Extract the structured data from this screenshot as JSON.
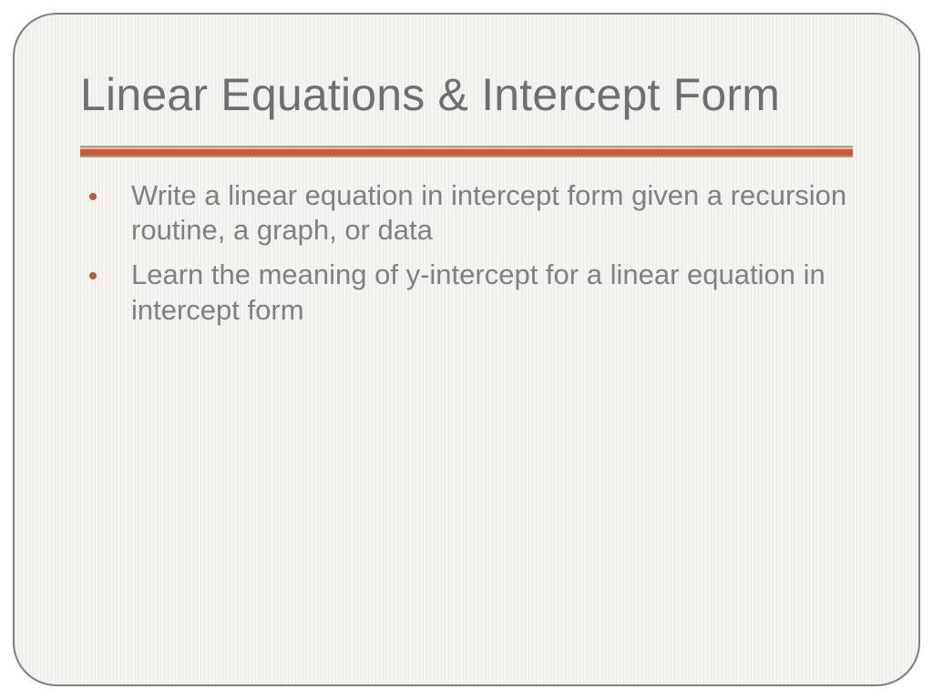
{
  "slide": {
    "title": "Linear Equations & Intercept Form",
    "title_color": "#6f6f6f",
    "title_fontsize": 50,
    "background_stripe_light": "#f6f4f3",
    "background_stripe_dark": "#ece9e7",
    "border_color": "#7f7f7f",
    "border_radius": 48,
    "divider": {
      "top_line_color": "#a7a399",
      "pink_band_color": "#e7b8a9",
      "accent_color": "#cc5a33",
      "bottom_line_color": "#a7a399"
    },
    "bullet_color": "#c05832",
    "body_text_color": "#808080",
    "body_fontsize": 31,
    "bullets": [
      "Write a linear equation in intercept form given a recursion routine, a graph, or data",
      "Learn the meaning of y-intercept for a linear equation in intercept form"
    ]
  }
}
